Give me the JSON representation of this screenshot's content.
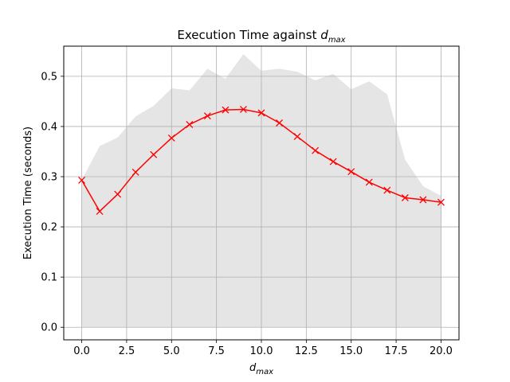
{
  "chart_data": {
    "type": "line",
    "title": {
      "text": "Execution Time against ",
      "var_main": "d",
      "var_sub": "max"
    },
    "xlabel": {
      "var_main": "d",
      "var_sub": "max"
    },
    "ylabel": "Execution Time (seconds)",
    "xlim": [
      -1,
      21
    ],
    "ylim": [
      -0.025,
      0.56
    ],
    "xticks": [
      0,
      2.5,
      5,
      7.5,
      10,
      12.5,
      15,
      17.5,
      20
    ],
    "xtick_labels": [
      "0.0",
      "2.5",
      "5.0",
      "7.5",
      "10.0",
      "12.5",
      "15.0",
      "17.5",
      "20.0"
    ],
    "yticks": [
      0,
      0.1,
      0.2,
      0.3,
      0.4,
      0.5
    ],
    "ytick_labels": [
      "0.0",
      "0.1",
      "0.2",
      "0.3",
      "0.4",
      "0.5"
    ],
    "grid": true,
    "line_color": "#ff0000",
    "band_color": "#e5e5e5",
    "series": [
      {
        "marker": "x",
        "x": [
          0,
          1,
          2,
          3,
          4,
          5,
          6,
          7,
          8,
          9,
          10,
          11,
          12,
          13,
          14,
          15,
          16,
          17,
          18,
          19,
          20
        ],
        "values": [
          0.293,
          0.231,
          0.265,
          0.309,
          0.344,
          0.377,
          0.404,
          0.421,
          0.433,
          0.434,
          0.427,
          0.407,
          0.38,
          0.352,
          0.33,
          0.31,
          0.289,
          0.273,
          0.258,
          0.254,
          0.249
        ]
      }
    ],
    "band": {
      "x": [
        0,
        1,
        2,
        3,
        4,
        5,
        6,
        7,
        8,
        9,
        10,
        11,
        12,
        13,
        14,
        15,
        16,
        17,
        18,
        19,
        20
      ],
      "upper": [
        0.293,
        0.361,
        0.378,
        0.42,
        0.441,
        0.476,
        0.472,
        0.515,
        0.495,
        0.544,
        0.511,
        0.515,
        0.509,
        0.492,
        0.505,
        0.474,
        0.49,
        0.464,
        0.334,
        0.281,
        0.262
      ],
      "lower": [
        0,
        0,
        0,
        0,
        0,
        0,
        0,
        0,
        0,
        0,
        0,
        0,
        0,
        0,
        0,
        0,
        0,
        0,
        0,
        0,
        0
      ]
    }
  }
}
